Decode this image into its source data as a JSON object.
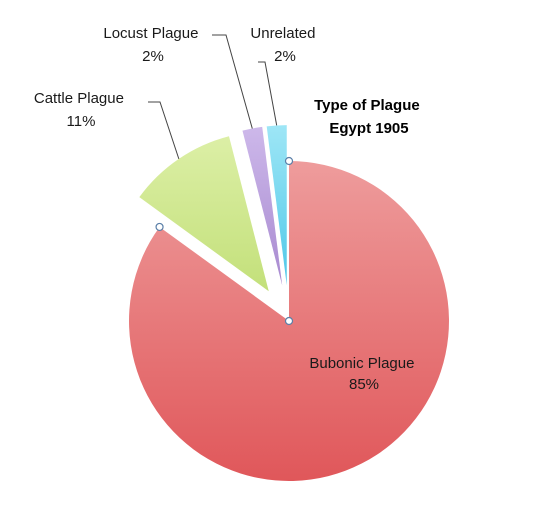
{
  "chart_data": {
    "type": "pie",
    "title": [
      "Type of Plague",
      "Egypt 1905"
    ],
    "slices": [
      {
        "name": "Bubonic Plague",
        "value": 85,
        "label": "85%",
        "color": "#e0575a",
        "color_light": "#ee9c9c",
        "exploded": false
      },
      {
        "name": "Cattle Plague",
        "value": 11,
        "label": "11%",
        "color": "#c3e07a",
        "color_light": "#dcefa6",
        "exploded": true
      },
      {
        "name": "Locust Plague",
        "value": 2,
        "label": "2%",
        "color": "#a88ad0",
        "color_light": "#cdb8ea",
        "exploded": true
      },
      {
        "name": "Unrelated",
        "value": 2,
        "label": "2%",
        "color": "#4fc8e8",
        "color_light": "#9ee6f6",
        "exploded": true
      }
    ],
    "legend": "none",
    "leader_line_color": "#444444"
  }
}
